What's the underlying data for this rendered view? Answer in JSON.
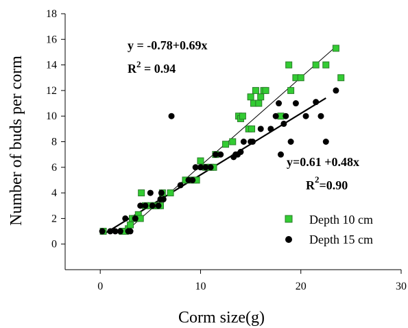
{
  "chart_data": {
    "type": "scatter",
    "xlabel": "Corm  size(g)",
    "ylabel": "Number of buds per corm",
    "xlim": [
      -3.5,
      30
    ],
    "ylim": [
      -2,
      18
    ],
    "xticks": [
      0,
      10,
      20,
      30
    ],
    "yticks": [
      0,
      2,
      4,
      6,
      8,
      10,
      12,
      14,
      16,
      18
    ],
    "grid": false,
    "legend_position": "bottom-right",
    "colors": {
      "depth10": "#33cc33",
      "depth15": "#000000",
      "edge10": "#2a7a2a"
    },
    "series": [
      {
        "name": "Depth 10 cm",
        "marker": "square",
        "regression": {
          "equation": "y = -0.78+0.69x",
          "r2_prefix": "R",
          "r2_sup": "2",
          "r2_suffix": " = 0.94",
          "intercept": -0.78,
          "slope": 0.69,
          "x_range": [
            3.0,
            23.5
          ]
        },
        "points": [
          [
            0.3,
            1.0
          ],
          [
            2.2,
            1.0
          ],
          [
            2.5,
            1.0
          ],
          [
            2.8,
            1.2
          ],
          [
            3.0,
            1.5
          ],
          [
            3.2,
            2.0
          ],
          [
            3.5,
            2.0
          ],
          [
            3.8,
            2.3
          ],
          [
            4.0,
            2.0
          ],
          [
            4.1,
            4.0
          ],
          [
            4.5,
            3.0
          ],
          [
            5.0,
            3.0
          ],
          [
            5.3,
            3.0
          ],
          [
            5.5,
            3.0
          ],
          [
            5.8,
            3.0
          ],
          [
            6.0,
            3.0
          ],
          [
            6.2,
            4.0
          ],
          [
            7.0,
            4.0
          ],
          [
            8.5,
            5.0
          ],
          [
            9.0,
            5.0
          ],
          [
            9.3,
            5.0
          ],
          [
            9.6,
            5.0
          ],
          [
            10.0,
            6.5
          ],
          [
            10.5,
            6.0
          ],
          [
            11.0,
            6.0
          ],
          [
            11.3,
            6.0
          ],
          [
            11.5,
            7.0
          ],
          [
            12.5,
            7.8
          ],
          [
            13.2,
            8.0
          ],
          [
            13.8,
            10.0
          ],
          [
            14.0,
            9.8
          ],
          [
            14.2,
            10.0
          ],
          [
            14.8,
            9.0
          ],
          [
            15.0,
            11.5
          ],
          [
            15.1,
            9.0
          ],
          [
            15.3,
            11.0
          ],
          [
            15.5,
            12.0
          ],
          [
            15.8,
            11.0
          ],
          [
            16.0,
            11.5
          ],
          [
            16.3,
            12.0
          ],
          [
            16.5,
            12.0
          ],
          [
            18.0,
            10.0
          ],
          [
            18.8,
            14.0
          ],
          [
            19.0,
            12.0
          ],
          [
            19.5,
            13.0
          ],
          [
            20.0,
            13.0
          ],
          [
            21.5,
            14.0
          ],
          [
            22.5,
            14.0
          ],
          [
            23.5,
            15.3
          ],
          [
            24.0,
            13.0
          ]
        ]
      },
      {
        "name": "Depth 15 cm",
        "marker": "circle",
        "regression": {
          "equation": "y=0.61 +0.48x",
          "r2_prefix": "R",
          "r2_sup": "2",
          "r2_suffix": "=0.90",
          "intercept": 0.61,
          "slope": 0.48,
          "x_range": [
            0.5,
            22.5
          ]
        },
        "points": [
          [
            0.2,
            1.0
          ],
          [
            1.0,
            1.0
          ],
          [
            1.5,
            1.0
          ],
          [
            2.0,
            1.0
          ],
          [
            2.5,
            2.0
          ],
          [
            2.8,
            1.0
          ],
          [
            3.0,
            1.0
          ],
          [
            3.5,
            2.0
          ],
          [
            4.0,
            3.0
          ],
          [
            4.5,
            3.0
          ],
          [
            5.0,
            4.0
          ],
          [
            5.2,
            3.0
          ],
          [
            5.8,
            3.0
          ],
          [
            6.0,
            3.5
          ],
          [
            6.1,
            4.0
          ],
          [
            6.3,
            3.5
          ],
          [
            7.1,
            10.0
          ],
          [
            8.0,
            4.6
          ],
          [
            8.8,
            5.0
          ],
          [
            9.2,
            5.0
          ],
          [
            9.5,
            6.0
          ],
          [
            10.0,
            6.0
          ],
          [
            10.5,
            6.0
          ],
          [
            11.0,
            6.0
          ],
          [
            11.5,
            7.0
          ],
          [
            12.0,
            7.0
          ],
          [
            13.3,
            6.8
          ],
          [
            13.5,
            7.0
          ],
          [
            13.7,
            7.0
          ],
          [
            14.0,
            7.2
          ],
          [
            14.3,
            8.0
          ],
          [
            15.0,
            8.0
          ],
          [
            15.2,
            8.0
          ],
          [
            16.0,
            9.0
          ],
          [
            17.0,
            9.0
          ],
          [
            17.5,
            10.0
          ],
          [
            17.8,
            11.0
          ],
          [
            18.0,
            7.0
          ],
          [
            18.3,
            9.4
          ],
          [
            18.5,
            10.0
          ],
          [
            19.0,
            8.0
          ],
          [
            19.5,
            11.0
          ],
          [
            20.5,
            10.0
          ],
          [
            21.5,
            11.1
          ],
          [
            22.0,
            10.0
          ],
          [
            22.5,
            8.0
          ],
          [
            23.5,
            12.0
          ]
        ]
      }
    ]
  }
}
